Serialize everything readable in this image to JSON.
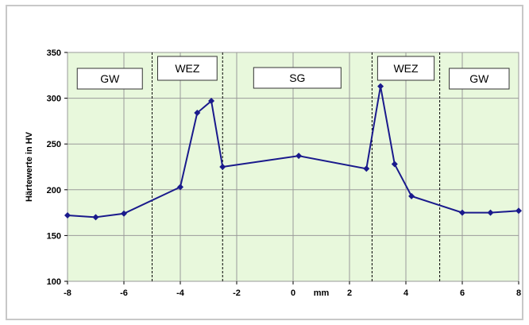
{
  "chart_data": {
    "type": "line",
    "title": "",
    "xlabel": "mm",
    "ylabel": "Härtewerte in HV",
    "xlim": [
      -8,
      8
    ],
    "ylim": [
      100,
      350
    ],
    "xticks": [
      "-8",
      "-6",
      "-4",
      "-2",
      "0",
      "2",
      "4",
      "6",
      "8"
    ],
    "yticks": [
      "100",
      "150",
      "200",
      "250",
      "300",
      "350"
    ],
    "grid": true,
    "plot_background": "#e8f8dc",
    "series": [
      {
        "name": "",
        "color": "#1a1a8c",
        "x": [
          -8,
          -7,
          -6,
          -4,
          -3.4,
          -2.9,
          -2.5,
          0.2,
          2.6,
          3.1,
          3.6,
          4.2,
          6,
          7,
          8
        ],
        "y": [
          172,
          170,
          174,
          203,
          284,
          297,
          225,
          237,
          223,
          313,
          228,
          193,
          175,
          175,
          177
        ]
      }
    ],
    "zone_dividers": [
      -5,
      -2.5,
      2.8,
      5.2
    ],
    "zones": [
      {
        "label": "GW",
        "x_from": -8,
        "x_to": -5
      },
      {
        "label": "WEZ",
        "x_from": -5,
        "x_to": -2.5
      },
      {
        "label": "SG",
        "x_from": -2.5,
        "x_to": 2.8
      },
      {
        "label": "WEZ",
        "x_from": 2.8,
        "x_to": 5.2
      },
      {
        "label": "GW",
        "x_from": 5.2,
        "x_to": 8
      }
    ]
  }
}
